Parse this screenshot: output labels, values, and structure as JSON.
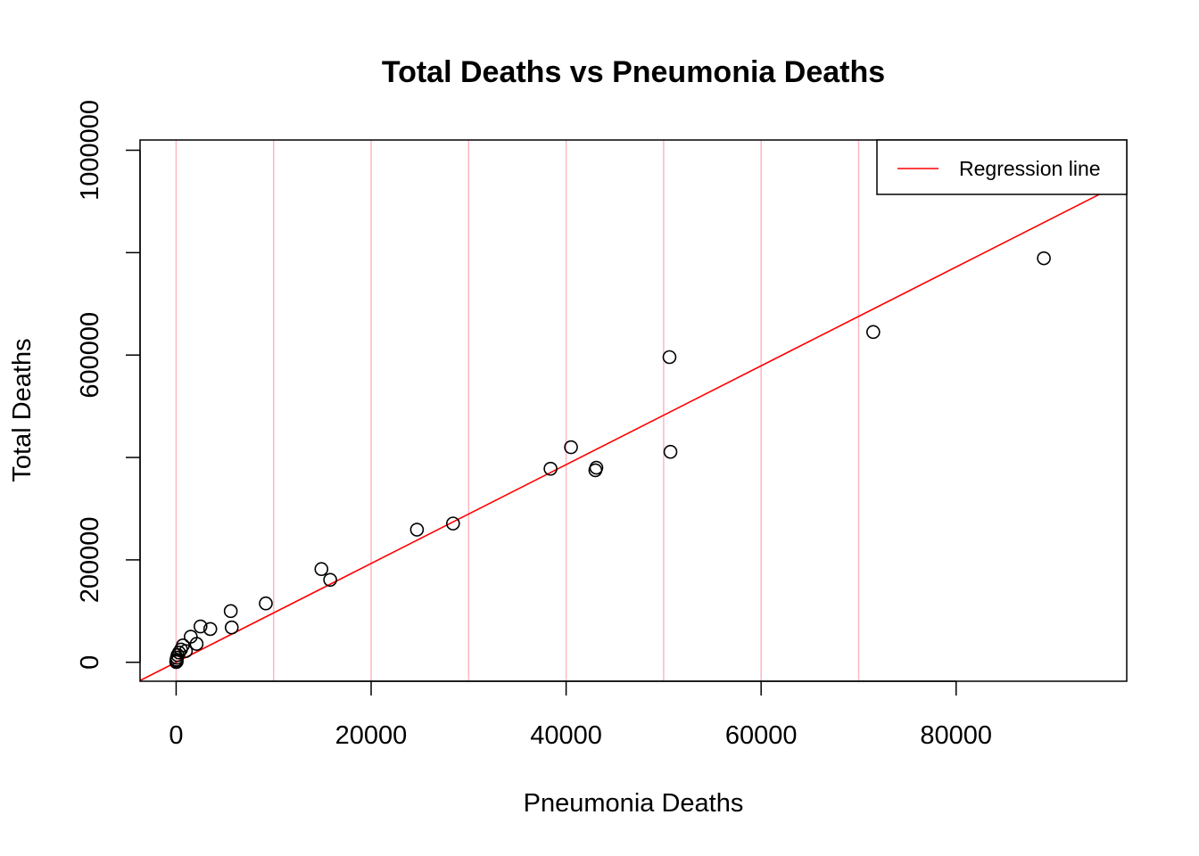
{
  "chart_data": {
    "type": "scatter",
    "title": "Total Deaths vs Pneumonia Deaths",
    "xlabel": "Pneumonia Deaths",
    "ylabel": "Total Deaths",
    "xlim": [
      -3700,
      97500
    ],
    "ylim": [
      -37000,
      1020000
    ],
    "x_ticks": [
      0,
      20000,
      40000,
      60000,
      80000
    ],
    "x_tick_labels": [
      "0",
      "20000",
      "40000",
      "60000",
      "80000"
    ],
    "y_ticks": [
      0,
      200000,
      400000,
      600000,
      800000,
      1000000
    ],
    "y_tick_labels": [
      "0",
      "200000",
      "",
      "600000",
      "",
      "1000000"
    ],
    "grid": {
      "vertical_at": [
        0,
        10000,
        20000,
        30000,
        40000,
        50000,
        60000,
        70000
      ],
      "color": "#ffb6c1"
    },
    "points": [
      {
        "x": 89000,
        "y": 789000
      },
      {
        "x": 71500,
        "y": 645000
      },
      {
        "x": 50600,
        "y": 596000
      },
      {
        "x": 50700,
        "y": 411000
      },
      {
        "x": 40500,
        "y": 420000
      },
      {
        "x": 38400,
        "y": 378000
      },
      {
        "x": 43100,
        "y": 380000
      },
      {
        "x": 43000,
        "y": 375000
      },
      {
        "x": 28400,
        "y": 271000
      },
      {
        "x": 24700,
        "y": 259000
      },
      {
        "x": 14900,
        "y": 182000
      },
      {
        "x": 15800,
        "y": 161000
      },
      {
        "x": 9200,
        "y": 115000
      },
      {
        "x": 5600,
        "y": 100000
      },
      {
        "x": 5700,
        "y": 68000
      },
      {
        "x": 2500,
        "y": 70000
      },
      {
        "x": 3500,
        "y": 65000
      },
      {
        "x": 1500,
        "y": 50000
      },
      {
        "x": 2100,
        "y": 36000
      },
      {
        "x": 700,
        "y": 33000
      },
      {
        "x": 1000,
        "y": 22000
      },
      {
        "x": 500,
        "y": 25000
      },
      {
        "x": 300,
        "y": 19000
      },
      {
        "x": 150,
        "y": 14000
      },
      {
        "x": 80,
        "y": 9000
      },
      {
        "x": 40,
        "y": 5000
      },
      {
        "x": 20,
        "y": 3000
      },
      {
        "x": 60,
        "y": 1500
      },
      {
        "x": 10,
        "y": 500
      }
    ],
    "regression": {
      "intercept": 0,
      "slope": 9.65,
      "color": "#ff0000"
    },
    "legend": {
      "position": "top-right",
      "entries": [
        {
          "label": "Regression line",
          "color": "#ff0000"
        }
      ]
    }
  }
}
